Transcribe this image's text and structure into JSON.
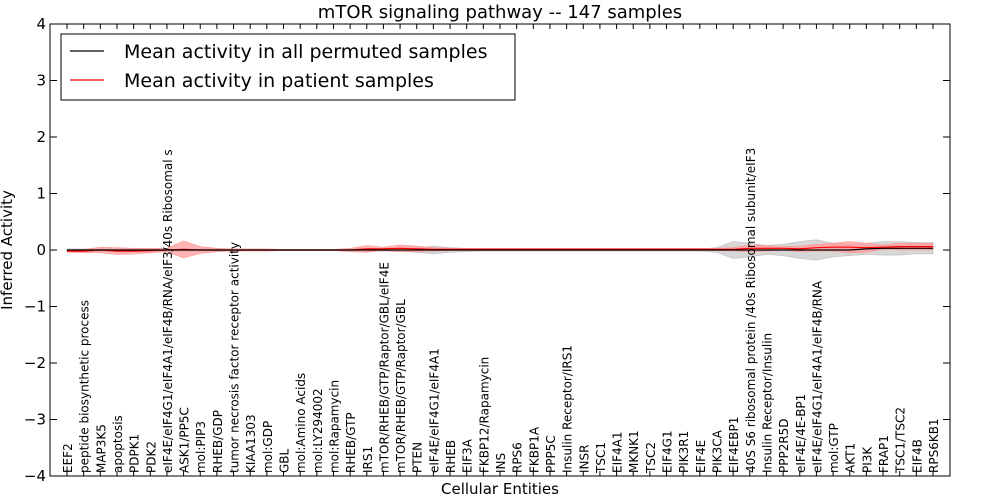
{
  "chart_data": {
    "type": "line",
    "title": "mTOR signaling pathway -- 147 samples",
    "xlabel": "Cellular Entities",
    "ylabel": "Inferred Activity",
    "ylim": [
      -4,
      4
    ],
    "yticks": [
      "4",
      "3",
      "2",
      "1",
      "0",
      "−1",
      "−2",
      "−3",
      "−4"
    ],
    "ytick_values": [
      4,
      3,
      2,
      1,
      0,
      -1,
      -2,
      -3,
      -4
    ],
    "legend_position": "top-left",
    "categories": [
      "EEF2",
      "peptide biosynthetic process",
      "MAP3K5",
      "apoptosis",
      "PDPK1",
      "PDK2",
      "eIF4E/eIF4G1/eIF4A1/eIF4B/RNA/eIF3/40s Ribosomal s",
      "ASK1/PP5C",
      "mol:PIP3",
      "RHEB/GDP",
      "tumor necrosis factor receptor activity",
      "KIAA1303",
      "mol:GDP",
      "GBL",
      "mol:Amino Acids",
      "mol:LY294002",
      "mol:Rapamycin",
      "RHEB/GTP",
      "IRS1",
      "mTOR/RHEB/GTP/Raptor/GBL/eIF4E",
      "mTOR/RHEB/GTP/Raptor/GBL",
      "PTEN",
      "eIF4E/eIF4G1/eIF4A1",
      "RHEB",
      "EIF3A",
      "FKBP12/Rapamycin",
      "INS",
      "RPS6",
      "FKBP1A",
      "PPP5C",
      "Insulin Receptor/IRS1",
      "INSR",
      "TSC1",
      "EIF4A1",
      "MKNK1",
      "TSC2",
      "EIF4G1",
      "PIK3R1",
      "EIF4E",
      "PIK3CA",
      "EIF4EBP1",
      "40S S6 ribosomal protein /40s Ribosomal subunit/eIF3",
      "Insulin Receptor/Insulin",
      "PPP2R5D",
      "eIF4E/4E-BP1",
      "eIF4E/eIF4G1/eIF4A1/eIF4B/RNA",
      "mol:GTP",
      "AKT1",
      "PI3K",
      "FRAP1",
      "TSC1/TSC2",
      "EIF4B",
      "RPS6KB1"
    ],
    "series": [
      {
        "name": "Mean activity in all permuted samples",
        "color": "#000000",
        "band_color": "#bdbdbd",
        "values": [
          0,
          0,
          0,
          0,
          0,
          0,
          0,
          0,
          0,
          0,
          0,
          0,
          0,
          0,
          0,
          0,
          0,
          0,
          0,
          0,
          0,
          0,
          0,
          0,
          0,
          0,
          0,
          0,
          0,
          0,
          0,
          0,
          0,
          0,
          0,
          0,
          0,
          0,
          0,
          0,
          0,
          0,
          0,
          0,
          0,
          0,
          0,
          0,
          0.02,
          0.03,
          0.03,
          0.03,
          0.03
        ],
        "band": [
          0.02,
          0.02,
          0.02,
          0.02,
          0.02,
          0.02,
          0.02,
          0.02,
          0.02,
          0.02,
          0.01,
          0.01,
          0.01,
          0.01,
          0.01,
          0.01,
          0.01,
          0.02,
          0.02,
          0.02,
          0.03,
          0.04,
          0.07,
          0.04,
          0.03,
          0.02,
          0.02,
          0.02,
          0.02,
          0.02,
          0.02,
          0.02,
          0.02,
          0.02,
          0.02,
          0.02,
          0.02,
          0.02,
          0.02,
          0.04,
          0.15,
          0.12,
          0.08,
          0.1,
          0.15,
          0.18,
          0.12,
          0.1,
          0.1,
          0.12,
          0.12,
          0.1,
          0.1
        ]
      },
      {
        "name": "Mean activity in patient samples",
        "color": "#ff0000",
        "band_color": "#ff9999",
        "values": [
          -0.02,
          -0.02,
          0,
          -0.02,
          -0.02,
          -0.01,
          0,
          0.01,
          0,
          0,
          0,
          0,
          0,
          0,
          0,
          0,
          0,
          0,
          0.02,
          0.02,
          0.03,
          0.02,
          0.01,
          0.01,
          0.01,
          0.01,
          0.01,
          0.01,
          0.01,
          0.01,
          0.01,
          0.01,
          0.01,
          0.01,
          0.01,
          0.01,
          0.01,
          0.01,
          0.01,
          0.01,
          0.01,
          0.03,
          0.03,
          0.03,
          0.02,
          0.04,
          0.05,
          0.05,
          0.04,
          0.05,
          0.06,
          0.06,
          0.06
        ],
        "band": [
          0.02,
          0.03,
          0.05,
          0.06,
          0.05,
          0.04,
          0.03,
          0.15,
          0.06,
          0.03,
          0.02,
          0.02,
          0.02,
          0.01,
          0.01,
          0.01,
          0.01,
          0.03,
          0.06,
          0.03,
          0.06,
          0.05,
          0.03,
          0.02,
          0.02,
          0.02,
          0.02,
          0.02,
          0.02,
          0.02,
          0.02,
          0.02,
          0.02,
          0.02,
          0.02,
          0.02,
          0.02,
          0.02,
          0.02,
          0.02,
          0.03,
          0.06,
          0.05,
          0.03,
          0.05,
          0.06,
          0.07,
          0.1,
          0.08,
          0.04,
          0.06,
          0.06,
          0.06
        ]
      }
    ]
  }
}
